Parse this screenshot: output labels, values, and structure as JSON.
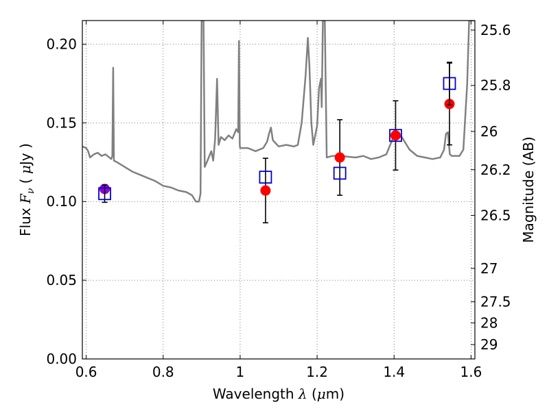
{
  "chart_data": {
    "type": "scatter",
    "xlabel": {
      "prefix": "Wavelength ",
      "symbol": "λ",
      "unit_open": " (",
      "unit_symbol": "μ",
      "unit_rest": "m)"
    },
    "ylabel": {
      "prefix": "Flux ",
      "symbol": "F",
      "subscript": "ν",
      "unit_open": " ( ",
      "unit_symbol": "μ",
      "unit_rest": "Jy )"
    },
    "y2label": "Magnitude (AB)",
    "xlim": [
      0.59,
      1.61
    ],
    "ylim": [
      0.0,
      0.215
    ],
    "grid": true,
    "x_ticks": [
      {
        "value": 0.6,
        "label": "0.6"
      },
      {
        "value": 0.8,
        "label": "0.8"
      },
      {
        "value": 1.0,
        "label": "1"
      },
      {
        "value": 1.2,
        "label": "1.2"
      },
      {
        "value": 1.4,
        "label": "1.4"
      },
      {
        "value": 1.6,
        "label": "1.6"
      }
    ],
    "y_ticks": [
      {
        "value": 0.0,
        "label": "0.00"
      },
      {
        "value": 0.05,
        "label": "0.05"
      },
      {
        "value": 0.1,
        "label": "0.10"
      },
      {
        "value": 0.15,
        "label": "0.15"
      },
      {
        "value": 0.2,
        "label": "0.20"
      }
    ],
    "magnitude_ticks": [
      {
        "value": 25.6,
        "label": "25.6"
      },
      {
        "value": 25.8,
        "label": "25.8"
      },
      {
        "value": 26.0,
        "label": "26"
      },
      {
        "value": 26.2,
        "label": "26.2"
      },
      {
        "value": 26.5,
        "label": "26.5"
      },
      {
        "value": 27.0,
        "label": "27"
      },
      {
        "value": 27.5,
        "label": "27.5"
      },
      {
        "value": 28.0,
        "label": "28"
      },
      {
        "value": 29.0,
        "label": "29"
      }
    ],
    "series": [
      {
        "type": "line",
        "color": "#808080",
        "points": [
          [
            0.59,
            0.135
          ],
          [
            0.6,
            0.134
          ],
          [
            0.605,
            0.132
          ],
          [
            0.61,
            0.128
          ],
          [
            0.62,
            0.13
          ],
          [
            0.63,
            0.131
          ],
          [
            0.64,
            0.129
          ],
          [
            0.65,
            0.13
          ],
          [
            0.66,
            0.128
          ],
          [
            0.665,
            0.127
          ],
          [
            0.668,
            0.129
          ],
          [
            0.67,
            0.185
          ],
          [
            0.672,
            0.126
          ],
          [
            0.68,
            0.125
          ],
          [
            0.7,
            0.122
          ],
          [
            0.72,
            0.119
          ],
          [
            0.74,
            0.117
          ],
          [
            0.76,
            0.115
          ],
          [
            0.78,
            0.113
          ],
          [
            0.8,
            0.11
          ],
          [
            0.82,
            0.109
          ],
          [
            0.84,
            0.107
          ],
          [
            0.86,
            0.106
          ],
          [
            0.875,
            0.104
          ],
          [
            0.885,
            0.1
          ],
          [
            0.893,
            0.1
          ],
          [
            0.897,
            0.105
          ],
          [
            0.9,
            0.215
          ],
          [
            0.905,
            0.215
          ],
          [
            0.908,
            0.122
          ],
          [
            0.915,
            0.126
          ],
          [
            0.925,
            0.132
          ],
          [
            0.93,
            0.126
          ],
          [
            0.935,
            0.14
          ],
          [
            0.94,
            0.178
          ],
          [
            0.944,
            0.136
          ],
          [
            0.95,
            0.141
          ],
          [
            0.96,
            0.139
          ],
          [
            0.97,
            0.142
          ],
          [
            0.98,
            0.14
          ],
          [
            0.99,
            0.146
          ],
          [
            0.995,
            0.144
          ],
          [
            0.997,
            0.202
          ],
          [
            0.999,
            0.136
          ],
          [
            1.0,
            0.134
          ],
          [
            1.02,
            0.134
          ],
          [
            1.04,
            0.132
          ],
          [
            1.06,
            0.134
          ],
          [
            1.07,
            0.138
          ],
          [
            1.075,
            0.143
          ],
          [
            1.08,
            0.147
          ],
          [
            1.085,
            0.139
          ],
          [
            1.1,
            0.135
          ],
          [
            1.12,
            0.136
          ],
          [
            1.14,
            0.135
          ],
          [
            1.15,
            0.136
          ],
          [
            1.16,
            0.15
          ],
          [
            1.17,
            0.18
          ],
          [
            1.176,
            0.204
          ],
          [
            1.18,
            0.186
          ],
          [
            1.185,
            0.15
          ],
          [
            1.19,
            0.136
          ],
          [
            1.2,
            0.148
          ],
          [
            1.205,
            0.172
          ],
          [
            1.21,
            0.178
          ],
          [
            1.212,
            0.16
          ],
          [
            1.215,
            0.215
          ],
          [
            1.22,
            0.215
          ],
          [
            1.225,
            0.128
          ],
          [
            1.24,
            0.129
          ],
          [
            1.26,
            0.129
          ],
          [
            1.3,
            0.128
          ],
          [
            1.32,
            0.129
          ],
          [
            1.34,
            0.127
          ],
          [
            1.36,
            0.128
          ],
          [
            1.38,
            0.13
          ],
          [
            1.4,
            0.142
          ],
          [
            1.42,
            0.141
          ],
          [
            1.44,
            0.133
          ],
          [
            1.46,
            0.129
          ],
          [
            1.48,
            0.128
          ],
          [
            1.5,
            0.127
          ],
          [
            1.52,
            0.128
          ],
          [
            1.53,
            0.133
          ],
          [
            1.535,
            0.143
          ],
          [
            1.54,
            0.144
          ],
          [
            1.545,
            0.13
          ],
          [
            1.55,
            0.129
          ],
          [
            1.57,
            0.129
          ],
          [
            1.58,
            0.133
          ],
          [
            1.59,
            0.175
          ],
          [
            1.595,
            0.215
          ],
          [
            1.6,
            0.215
          ],
          [
            1.605,
            0.215
          ],
          [
            1.61,
            0.215
          ]
        ]
      },
      {
        "type": "scatter-errorbar",
        "marker": "circle",
        "color": "#ff0000",
        "points": [
          {
            "x": 0.648,
            "y": 0.108,
            "err": 0.0
          },
          {
            "x": 1.066,
            "y": 0.107,
            "err": 0.0205
          },
          {
            "x": 1.259,
            "y": 0.128,
            "err": 0.024
          },
          {
            "x": 1.404,
            "y": 0.142,
            "err": 0.022
          },
          {
            "x": 1.544,
            "y": 0.162,
            "err": 0.026
          }
        ]
      },
      {
        "type": "scatter",
        "marker": "circle",
        "color": "#9400d3",
        "points": [
          {
            "x": 0.648,
            "y": 0.108
          }
        ]
      },
      {
        "type": "scatter-errorbar",
        "marker": "open-square",
        "color": "#0000cc",
        "points": [
          {
            "x": 0.648,
            "y": 0.105,
            "err": 0.0055
          },
          {
            "x": 1.066,
            "y": 0.1155,
            "err": 0.0
          },
          {
            "x": 1.259,
            "y": 0.118,
            "err": 0.0
          },
          {
            "x": 1.404,
            "y": 0.142,
            "err": 0.0
          },
          {
            "x": 1.544,
            "y": 0.175,
            "err": 0.0135
          }
        ]
      }
    ]
  }
}
